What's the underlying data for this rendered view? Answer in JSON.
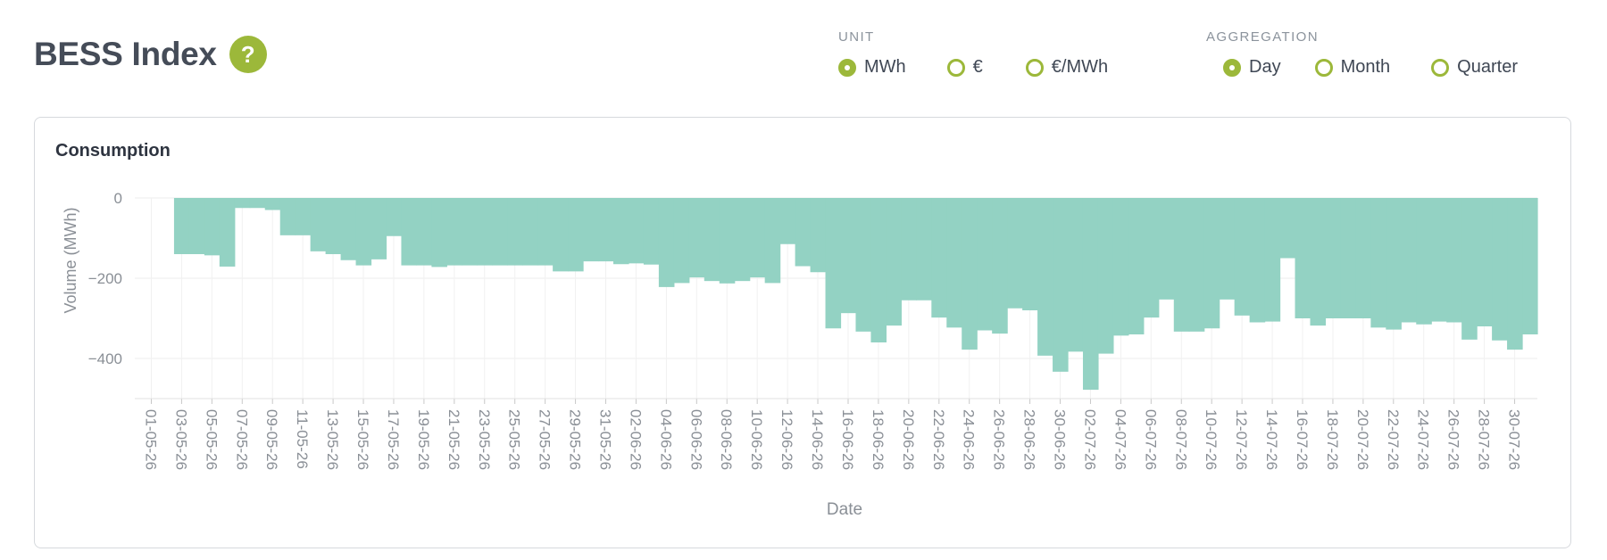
{
  "header": {
    "title": "BESS Index",
    "help_icon": "?"
  },
  "unit_group": {
    "label": "UNIT",
    "options": [
      {
        "label": "MWh",
        "selected": true
      },
      {
        "label": "€",
        "selected": false
      },
      {
        "label": "€/MWh",
        "selected": false
      }
    ]
  },
  "aggregation_group": {
    "label": "AGGREGATION",
    "options": [
      {
        "label": "Day",
        "selected": true
      },
      {
        "label": "Month",
        "selected": false
      },
      {
        "label": "Quarter",
        "selected": false
      }
    ]
  },
  "colors": {
    "accent": "#9cb83a",
    "area_fill": "#93d2c3",
    "grid": "#eeeeee"
  },
  "chart_data": {
    "type": "area",
    "title": "Consumption",
    "xlabel": "Date",
    "ylabel": "Volume (MWh)",
    "ylim": [
      -500,
      0
    ],
    "yticks": [
      0,
      -200,
      -400
    ],
    "grid": true,
    "step": true,
    "x_tick_labels": [
      "01-05-26",
      "03-05-26",
      "05-05-26",
      "07-05-26",
      "09-05-26",
      "11-05-26",
      "13-05-26",
      "15-05-26",
      "17-05-26",
      "19-05-26",
      "21-05-26",
      "23-05-26",
      "25-05-26",
      "27-05-26",
      "29-05-26",
      "31-05-26",
      "02-06-26",
      "04-06-26",
      "06-06-26",
      "08-06-26",
      "10-06-26",
      "12-06-26",
      "14-06-26",
      "16-06-26",
      "18-06-26",
      "20-06-26",
      "22-06-26",
      "24-06-26",
      "26-06-26",
      "28-06-26",
      "30-06-26",
      "02-07-26",
      "04-07-26",
      "06-07-26",
      "08-07-26",
      "10-07-26",
      "12-07-26",
      "14-07-26",
      "16-07-26",
      "18-07-26",
      "20-07-26",
      "22-07-26",
      "24-07-26",
      "26-07-26",
      "28-07-26",
      "30-07-26"
    ],
    "series": [
      {
        "values": [
          0,
          0,
          -140,
          -140,
          -143,
          -171,
          -25,
          -25,
          -30,
          -93,
          -93,
          -133,
          -140,
          -155,
          -168,
          -153,
          -95,
          -168,
          -168,
          -172,
          -168,
          -168,
          -168,
          -168,
          -168,
          -168,
          -168,
          -183,
          -183,
          -158,
          -158,
          -165,
          -163,
          -166,
          -222,
          -212,
          -198,
          -207,
          -213,
          -207,
          -198,
          -212,
          -115,
          -170,
          -185,
          -325,
          -287,
          -333,
          -360,
          -318,
          -255,
          -255,
          -298,
          -323,
          -378,
          -330,
          -338,
          -275,
          -280,
          -393,
          -433,
          -383,
          -478,
          -388,
          -343,
          -340,
          -298,
          -253,
          -333,
          -333,
          -325,
          -253,
          -293,
          -310,
          -308,
          -150,
          -300,
          -318,
          -300,
          -300,
          -300,
          -323,
          -328,
          -310,
          -315,
          -308,
          -310,
          -353,
          -320,
          -355,
          -378,
          -340
        ]
      }
    ]
  }
}
